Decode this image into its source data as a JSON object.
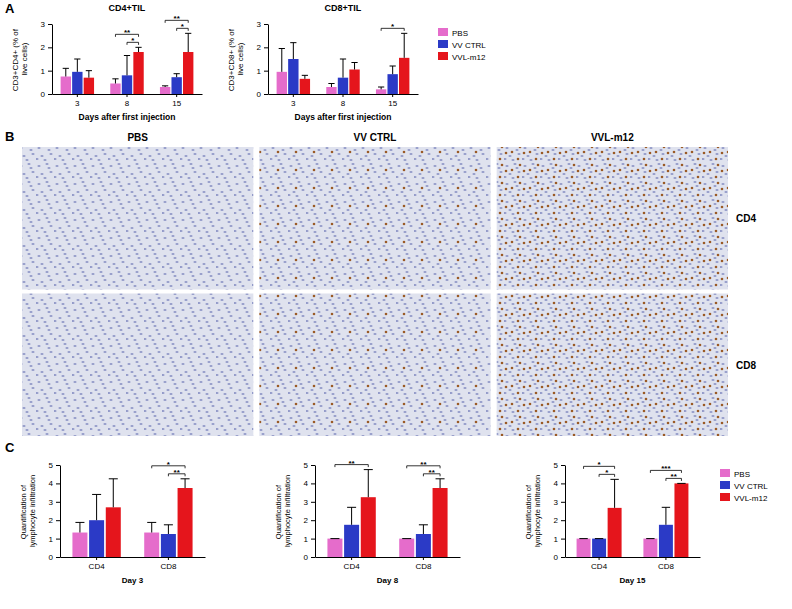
{
  "chart_data": [
    {
      "type": "bar",
      "title": "CD4+TIL",
      "x_label": "Days after first injection",
      "y_label": "CD3+CD4+ (% of live cells)",
      "categories": [
        "3",
        "8",
        "15"
      ],
      "ylim": [
        0,
        3
      ],
      "yticks": [
        0,
        1,
        2,
        3
      ],
      "series": [
        {
          "color": "#e56ccb",
          "values": [
            0.75,
            0.45,
            0.3
          ],
          "errors": [
            0.35,
            0.2,
            0.05
          ]
        },
        {
          "color": "#2b3ac6",
          "values": [
            0.95,
            0.8,
            0.72
          ],
          "errors": [
            0.55,
            0.85,
            0.15
          ]
        },
        {
          "color": "#e5151c",
          "values": [
            0.7,
            1.8,
            1.8
          ],
          "errors": [
            0.3,
            0.2,
            0.8
          ]
        }
      ],
      "annotations": [
        {
          "category": 1,
          "from": 1,
          "to": 2,
          "label": "*"
        },
        {
          "category": 1,
          "from": 0,
          "to": 2,
          "label": "**"
        },
        {
          "category": 2,
          "from": 1,
          "to": 2,
          "label": "*"
        },
        {
          "category": 2,
          "from": 0,
          "to": 2,
          "label": "**"
        }
      ]
    },
    {
      "type": "bar",
      "title": "CD8+TIL",
      "x_label": "Days after first injection",
      "y_label": "CD3+CD8+ (% of live cells)",
      "categories": [
        "3",
        "8",
        "15"
      ],
      "ylim": [
        0,
        3
      ],
      "yticks": [
        0,
        1,
        2,
        3
      ],
      "legend": "right",
      "series": [
        {
          "name": "PBS",
          "color": "#e56ccb",
          "values": [
            0.95,
            0.3,
            0.2
          ],
          "errors": [
            1.0,
            0.15,
            0.1
          ]
        },
        {
          "name": "VV CTRL",
          "color": "#2b3ac6",
          "values": [
            1.5,
            0.7,
            0.85
          ],
          "errors": [
            0.7,
            0.8,
            0.35
          ]
        },
        {
          "name": "VVL-m12",
          "color": "#e5151c",
          "values": [
            0.65,
            1.05,
            1.55
          ],
          "errors": [
            0.15,
            0.3,
            1.05
          ]
        }
      ],
      "annotations": [
        {
          "category": 2,
          "from": 0,
          "to": 2,
          "label": "*"
        }
      ]
    },
    {
      "type": "bar",
      "x_label": "Day 3",
      "y_label": "Quantification of lymphocyte infiltration",
      "categories": [
        "CD4",
        "CD8"
      ],
      "ylim": [
        0,
        5
      ],
      "yticks": [
        0,
        1,
        2,
        3,
        4,
        5
      ],
      "series": [
        {
          "color": "#e56ccb",
          "values": [
            1.33,
            1.33
          ],
          "errors": [
            0.55,
            0.55
          ]
        },
        {
          "color": "#2b3ac6",
          "values": [
            2.0,
            1.25
          ],
          "errors": [
            1.4,
            0.5
          ]
        },
        {
          "color": "#e5151c",
          "values": [
            2.7,
            3.75
          ],
          "errors": [
            1.55,
            0.5
          ]
        }
      ],
      "annotations": [
        {
          "category": 1,
          "from": 1,
          "to": 2,
          "label": "**"
        },
        {
          "category": 1,
          "from": 0,
          "to": 2,
          "label": "*"
        }
      ]
    },
    {
      "type": "bar",
      "x_label": "Day 8",
      "y_label": "Quantification of lymphocyte infiltration",
      "categories": [
        "CD4",
        "CD8"
      ],
      "ylim": [
        0,
        5
      ],
      "yticks": [
        0,
        1,
        2,
        3,
        4,
        5
      ],
      "series": [
        {
          "color": "#e56ccb",
          "values": [
            1.0,
            1.0
          ],
          "errors": [
            0,
            0
          ]
        },
        {
          "color": "#2b3ac6",
          "values": [
            1.75,
            1.25
          ],
          "errors": [
            0.95,
            0.5
          ]
        },
        {
          "color": "#e5151c",
          "values": [
            3.25,
            3.75
          ],
          "errors": [
            1.5,
            0.5
          ]
        }
      ],
      "annotations": [
        {
          "category": 0,
          "from": 0,
          "to": 2,
          "label": "**"
        },
        {
          "category": 1,
          "from": 1,
          "to": 2,
          "label": "**"
        },
        {
          "category": 1,
          "from": 0,
          "to": 2,
          "label": "**"
        }
      ]
    },
    {
      "type": "bar",
      "x_label": "Day 15",
      "y_label": "Quantification of lymphocyte infiltration",
      "categories": [
        "CD4",
        "CD8"
      ],
      "ylim": [
        0,
        5
      ],
      "yticks": [
        0,
        1,
        2,
        3,
        4,
        5
      ],
      "legend": "right",
      "series": [
        {
          "name": "PBS",
          "color": "#e56ccb",
          "values": [
            1.0,
            1.0
          ],
          "errors": [
            0,
            0
          ]
        },
        {
          "name": "VV CTRL",
          "color": "#2b3ac6",
          "values": [
            1.0,
            1.75
          ],
          "errors": [
            0,
            0.95
          ]
        },
        {
          "name": "VVL-m12",
          "color": "#e5151c",
          "values": [
            2.67,
            4.0
          ],
          "errors": [
            1.55,
            0
          ]
        }
      ],
      "annotations": [
        {
          "category": 0,
          "from": 1,
          "to": 2,
          "label": "*"
        },
        {
          "category": 0,
          "from": 0,
          "to": 2,
          "label": "*"
        },
        {
          "category": 1,
          "from": 1,
          "to": 2,
          "label": "**"
        },
        {
          "category": 1,
          "from": 0,
          "to": 2,
          "label": "***"
        }
      ]
    }
  ],
  "panel_labels": [
    "A",
    "B",
    "C"
  ],
  "images": {
    "columns": [
      "PBS",
      "VV CTRL",
      "VVL-m12"
    ],
    "rows": [
      "CD4",
      "CD8"
    ]
  }
}
